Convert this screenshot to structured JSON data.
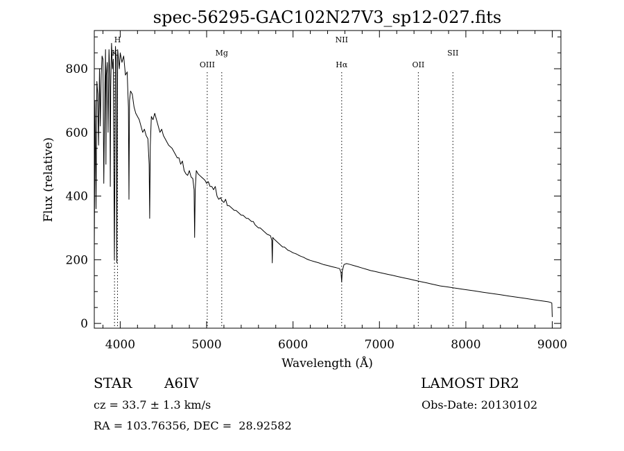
{
  "chart_data": {
    "type": "line",
    "title": "spec-56295-GAC102N27V3_sp12-027.fits",
    "xlabel": "Wavelength (Å)",
    "ylabel": "Flux (relative)",
    "xlim": [
      3700,
      9100
    ],
    "ylim": [
      -15,
      920
    ],
    "xticks": [
      4000,
      5000,
      6000,
      7000,
      8000,
      9000
    ],
    "yticks": [
      0,
      200,
      400,
      600,
      800
    ],
    "grid": false,
    "line_color": "#000000",
    "series": [
      {
        "x": [
          3700,
          3710,
          3720,
          3730,
          3740,
          3750,
          3760,
          3770,
          3780,
          3790,
          3800,
          3810,
          3820,
          3830,
          3835,
          3840,
          3850,
          3860,
          3870,
          3880,
          3885,
          3890,
          3900,
          3910,
          3920,
          3933,
          3945,
          3955,
          3960,
          3970,
          3980,
          3990,
          4000,
          4020,
          4040,
          4060,
          4080,
          4095,
          4101,
          4108,
          4120,
          4140,
          4160,
          4180,
          4200,
          4220,
          4240,
          4260,
          4280,
          4300,
          4320,
          4335,
          4341,
          4348,
          4360,
          4380,
          4400,
          4420,
          4440,
          4460,
          4480,
          4500,
          4520,
          4540,
          4560,
          4580,
          4600,
          4620,
          4640,
          4660,
          4680,
          4700,
          4720,
          4740,
          4760,
          4780,
          4800,
          4820,
          4840,
          4855,
          4861,
          4868,
          4880,
          4900,
          4920,
          4940,
          4960,
          4980,
          5000,
          5020,
          5040,
          5060,
          5080,
          5100,
          5120,
          5140,
          5160,
          5180,
          5200,
          5220,
          5240,
          5260,
          5280,
          5300,
          5320,
          5340,
          5360,
          5380,
          5400,
          5420,
          5440,
          5460,
          5480,
          5500,
          5520,
          5540,
          5560,
          5580,
          5600,
          5620,
          5640,
          5660,
          5680,
          5700,
          5720,
          5740,
          5755,
          5760,
          5765,
          5780,
          5800,
          5820,
          5840,
          5860,
          5880,
          5900,
          5920,
          5940,
          5960,
          5980,
          6000,
          6020,
          6040,
          6060,
          6080,
          6100,
          6120,
          6140,
          6160,
          6180,
          6200,
          6250,
          6300,
          6350,
          6400,
          6450,
          6500,
          6540,
          6555,
          6563,
          6570,
          6590,
          6620,
          6650,
          6700,
          6750,
          6800,
          6850,
          6900,
          6950,
          7000,
          7050,
          7100,
          7150,
          7200,
          7250,
          7300,
          7350,
          7400,
          7450,
          7500,
          7550,
          7600,
          7650,
          7700,
          7750,
          7800,
          7850,
          7900,
          7950,
          8000,
          8050,
          8100,
          8150,
          8200,
          8250,
          8300,
          8350,
          8400,
          8450,
          8500,
          8550,
          8600,
          8650,
          8700,
          8750,
          8800,
          8850,
          8900,
          8950,
          8980,
          8995,
          9000
        ],
        "y": [
          230,
          700,
          360,
          760,
          720,
          560,
          800,
          620,
          780,
          840,
          830,
          440,
          700,
          860,
          500,
          780,
          820,
          600,
          860,
          780,
          430,
          740,
          880,
          800,
          830,
          200,
          870,
          820,
          190,
          860,
          830,
          800,
          850,
          820,
          840,
          780,
          790,
          680,
          390,
          700,
          730,
          720,
          680,
          660,
          650,
          640,
          620,
          600,
          610,
          590,
          580,
          500,
          330,
          560,
          650,
          640,
          660,
          640,
          620,
          600,
          610,
          590,
          580,
          570,
          560,
          555,
          550,
          540,
          530,
          520,
          520,
          500,
          510,
          480,
          470,
          465,
          480,
          460,
          455,
          420,
          270,
          420,
          480,
          470,
          465,
          460,
          455,
          450,
          440,
          445,
          430,
          430,
          420,
          430,
          400,
          390,
          395,
          385,
          380,
          390,
          370,
          370,
          365,
          360,
          355,
          355,
          350,
          345,
          340,
          340,
          335,
          330,
          330,
          325,
          320,
          320,
          310,
          305,
          300,
          300,
          295,
          290,
          285,
          280,
          278,
          275,
          260,
          190,
          270,
          265,
          260,
          255,
          250,
          245,
          240,
          240,
          235,
          230,
          228,
          225,
          222,
          220,
          218,
          215,
          212,
          210,
          208,
          205,
          202,
          200,
          198,
          194,
          190,
          185,
          182,
          178,
          175,
          172,
          160,
          130,
          165,
          185,
          188,
          186,
          182,
          178,
          174,
          170,
          166,
          163,
          160,
          157,
          154,
          151,
          148,
          145,
          142,
          139,
          136,
          133,
          130,
          127,
          124,
          121,
          118,
          116,
          114,
          112,
          110,
          108,
          106,
          104,
          102,
          100,
          98,
          96,
          94,
          92,
          90,
          88,
          86,
          84,
          82,
          80,
          78,
          76,
          74,
          72,
          70,
          68,
          66,
          64,
          20
        ]
      }
    ],
    "line_labels": [
      {
        "x": 3934,
        "label": "K",
        "row": 1
      },
      {
        "x": 3969,
        "label": "H",
        "row": 0
      },
      {
        "x": 5007,
        "label": "OIII",
        "row": 2
      },
      {
        "x": 5175,
        "label": "Mg",
        "row": 1
      },
      {
        "x": 6563,
        "label": "NII",
        "row": 0
      },
      {
        "x": 6563,
        "label": "Hα",
        "row": 2
      },
      {
        "x": 7450,
        "label": "OII",
        "row": 2
      },
      {
        "x": 7850,
        "label": "SII",
        "row": 1
      }
    ]
  },
  "info": {
    "object_type": "STAR",
    "subclass": "A6IV",
    "survey": "LAMOST DR2",
    "cz": "cz = 33.7 ± 1.3 km/s",
    "obs_date": "Obs-Date: 20130102",
    "coords": "RA = 103.76356, DEC =  28.92582"
  }
}
